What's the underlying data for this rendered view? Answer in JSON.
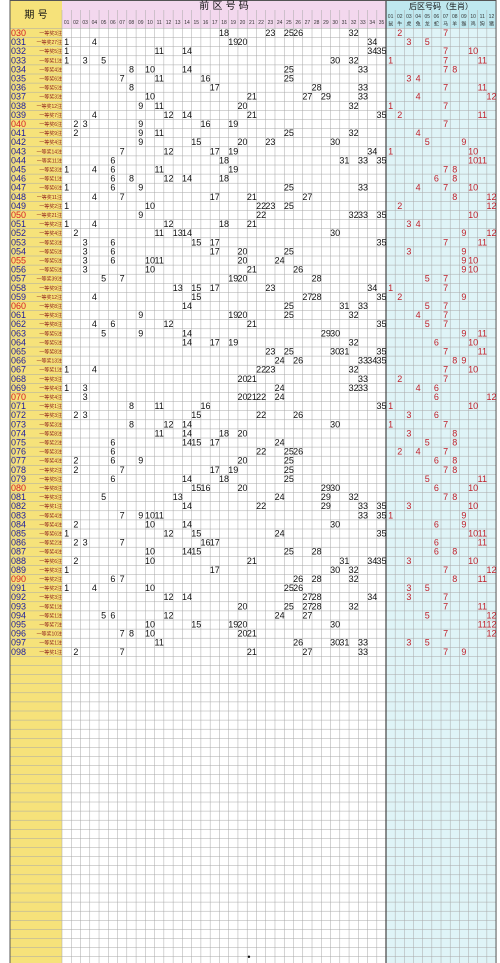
{
  "header": {
    "issue_col": "期 号",
    "front_title": "前 区 号 码",
    "back_title": "后区号码（生肖）",
    "front_cols": [
      "01",
      "02",
      "03",
      "04",
      "05",
      "06",
      "07",
      "08",
      "09",
      "10",
      "11",
      "12",
      "13",
      "14",
      "15",
      "16",
      "17",
      "18",
      "19",
      "20",
      "21",
      "22",
      "23",
      "24",
      "25",
      "26",
      "27",
      "28",
      "29",
      "30",
      "31",
      "32",
      "33",
      "34",
      "35"
    ],
    "back_cols": [
      "01",
      "02",
      "03",
      "04",
      "05",
      "06",
      "07",
      "08",
      "09",
      "10",
      "11",
      "12"
    ],
    "zodiac": [
      "鼠",
      "牛",
      "虎",
      "兔",
      "龙",
      "蛇",
      "马",
      "羊",
      "猴",
      "鸡",
      "狗",
      "猪"
    ]
  },
  "colors": {
    "issue_bg": "#f6e27a",
    "front_header_bg": "#f3d8ee",
    "back_header_bg": "#bfe8ef",
    "back_bg": "#dff4f7",
    "grid": "#9a9a9a",
    "red": "#d4202a",
    "dark": "#111111"
  },
  "rows": [
    {
      "issue": "030",
      "note": "一等奖3注",
      "front": [
        18,
        23,
        25,
        26,
        32
      ],
      "back": [
        2,
        7
      ],
      "red": true
    },
    {
      "issue": "031",
      "note": "一等奖27注",
      "front": [
        1,
        4,
        19,
        20,
        34
      ],
      "back": [
        3,
        5
      ]
    },
    {
      "issue": "032",
      "note": "一等奖5注",
      "front": [
        1,
        11,
        14,
        34,
        35
      ],
      "back": [
        7,
        10
      ]
    },
    {
      "issue": "033",
      "note": "一等奖1注",
      "front": [
        1,
        3,
        5,
        30,
        32
      ],
      "back": [
        1,
        7,
        11
      ]
    },
    {
      "issue": "034",
      "note": "一等奖4注",
      "front": [
        8,
        10,
        14,
        25,
        33
      ],
      "back": [
        7,
        8
      ]
    },
    {
      "issue": "035",
      "note": "一等奖6注",
      "front": [
        7,
        11,
        16,
        25
      ],
      "back": [
        3,
        4
      ]
    },
    {
      "issue": "036",
      "note": "一等奖5注",
      "front": [
        8,
        17,
        28,
        33
      ],
      "back": [
        7,
        11
      ]
    },
    {
      "issue": "037",
      "note": "一等奖3注",
      "front": [
        10,
        21,
        27,
        29,
        33
      ],
      "back": [
        4,
        12
      ]
    },
    {
      "issue": "038",
      "note": "一等奖12注",
      "front": [
        9,
        11,
        20,
        32
      ],
      "back": [
        1,
        7
      ]
    },
    {
      "issue": "039",
      "note": "一等奖7注",
      "front": [
        4,
        12,
        14,
        21,
        35
      ],
      "back": [
        2,
        11
      ]
    },
    {
      "issue": "040",
      "note": "一等奖6注",
      "front": [
        2,
        3,
        9,
        16,
        19
      ],
      "back": [
        7
      ],
      "red": true
    },
    {
      "issue": "041",
      "note": "一等奖9注",
      "front": [
        2,
        9,
        11,
        25,
        32
      ],
      "back": [
        4
      ]
    },
    {
      "issue": "042",
      "note": "一等奖4注",
      "front": [
        9,
        15,
        20,
        23,
        30
      ],
      "back": [
        5,
        9
      ]
    },
    {
      "issue": "043",
      "note": "一等奖14注",
      "front": [
        7,
        12,
        17,
        19,
        34
      ],
      "back": [
        1,
        10
      ]
    },
    {
      "issue": "044",
      "note": "一等奖11注",
      "front": [
        6,
        18,
        31,
        33,
        35
      ],
      "back": [
        10,
        11
      ]
    },
    {
      "issue": "045",
      "note": "一等奖3注",
      "front": [
        1,
        4,
        6,
        11,
        19
      ],
      "back": [
        7,
        8
      ]
    },
    {
      "issue": "046",
      "note": "一等奖1注",
      "front": [
        6,
        8,
        12,
        14,
        18
      ],
      "back": [
        6,
        8
      ]
    },
    {
      "issue": "047",
      "note": "一等奖6注",
      "front": [
        1,
        6,
        9,
        25,
        33
      ],
      "back": [
        4,
        7,
        10
      ]
    },
    {
      "issue": "048",
      "note": "一等奖11注",
      "front": [
        4,
        7,
        17,
        21,
        27
      ],
      "back": [
        8,
        12
      ]
    },
    {
      "issue": "049",
      "note": "一等奖2注",
      "front": [
        1,
        10,
        22,
        23,
        25
      ],
      "back": [
        2,
        12
      ]
    },
    {
      "issue": "050",
      "note": "一等奖21注",
      "front": [
        9,
        22,
        32,
        33,
        35
      ],
      "back": [
        10
      ],
      "red": true
    },
    {
      "issue": "051",
      "note": "一等奖2注",
      "front": [
        1,
        4,
        12,
        18,
        21
      ],
      "back": [
        3,
        4
      ]
    },
    {
      "issue": "052",
      "note": "一等奖4注",
      "front": [
        2,
        11,
        13,
        14,
        30
      ],
      "back": [
        9,
        12
      ]
    },
    {
      "issue": "053",
      "note": "一等奖3注",
      "front": [
        3,
        6,
        15,
        17,
        35
      ],
      "back": [
        7,
        11
      ]
    },
    {
      "issue": "054",
      "note": "一等奖5注",
      "front": [
        3,
        6,
        17,
        20,
        25
      ],
      "back": [
        3,
        9
      ]
    },
    {
      "issue": "055",
      "note": "一等奖5注",
      "front": [
        3,
        6,
        10,
        11,
        20,
        24
      ],
      "back": [
        9,
        10
      ],
      "red": true
    },
    {
      "issue": "056",
      "note": "一等奖5注",
      "front": [
        3,
        10,
        21,
        26
      ],
      "back": [
        9,
        10
      ]
    },
    {
      "issue": "057",
      "note": "一等奖39注",
      "front": [
        5,
        7,
        19,
        20,
        28
      ],
      "back": [
        5,
        7
      ]
    },
    {
      "issue": "058",
      "note": "一等奖9注",
      "front": [
        13,
        15,
        17,
        23,
        34
      ],
      "back": [
        1,
        7
      ]
    },
    {
      "issue": "059",
      "note": "一等奖12注",
      "front": [
        4,
        15,
        27,
        28,
        35
      ],
      "back": [
        2,
        9
      ]
    },
    {
      "issue": "060",
      "note": "一等奖8注",
      "front": [
        14,
        25,
        31,
        33
      ],
      "back": [
        5,
        7
      ],
      "red": true
    },
    {
      "issue": "061",
      "note": "一等奖3注",
      "front": [
        9,
        19,
        20,
        25,
        32
      ],
      "back": [
        4,
        7
      ]
    },
    {
      "issue": "062",
      "note": "一等奖8注",
      "front": [
        4,
        6,
        12,
        21,
        35
      ],
      "back": [
        5,
        7
      ]
    },
    {
      "issue": "063",
      "note": "一等奖5注",
      "front": [
        5,
        9,
        14,
        29,
        30
      ],
      "back": [
        9,
        11
      ]
    },
    {
      "issue": "064",
      "note": "一等奖5注",
      "front": [
        14,
        17,
        19,
        32
      ],
      "back": [
        6,
        10
      ]
    },
    {
      "issue": "065",
      "note": "一等奖8注",
      "front": [
        23,
        25,
        30,
        31,
        35
      ],
      "back": [
        7,
        11
      ]
    },
    {
      "issue": "066",
      "note": "一等奖13注",
      "front": [
        24,
        26,
        33,
        34,
        35
      ],
      "back": [
        8,
        9
      ]
    },
    {
      "issue": "067",
      "note": "一等奖1注",
      "front": [
        1,
        4,
        22,
        23,
        32
      ],
      "back": [
        7,
        10
      ]
    },
    {
      "issue": "068",
      "note": "一等奖3注",
      "front": [
        20,
        21,
        33
      ],
      "back": [
        2,
        7
      ]
    },
    {
      "issue": "069",
      "note": "一等奖4注",
      "front": [
        1,
        3,
        24,
        32,
        33
      ],
      "back": [
        4,
        6
      ]
    },
    {
      "issue": "070",
      "note": "一等奖4注",
      "front": [
        3,
        20,
        21,
        22,
        24
      ],
      "back": [
        6,
        12
      ],
      "red": true
    },
    {
      "issue": "071",
      "note": "一等奖1注",
      "front": [
        8,
        11,
        16,
        35
      ],
      "back": [
        1,
        10
      ]
    },
    {
      "issue": "072",
      "note": "一等奖3注",
      "front": [
        2,
        3,
        15,
        22,
        26
      ],
      "back": [
        3,
        6
      ]
    },
    {
      "issue": "073",
      "note": "一等奖3注",
      "front": [
        8,
        12,
        14,
        30
      ],
      "back": [
        1,
        7
      ]
    },
    {
      "issue": "074",
      "note": "一等奖8注",
      "front": [
        11,
        14,
        18,
        20
      ],
      "back": [
        3,
        8
      ]
    },
    {
      "issue": "075",
      "note": "一等奖2注",
      "front": [
        6,
        14,
        15,
        17,
        24
      ],
      "back": [
        5,
        8
      ]
    },
    {
      "issue": "076",
      "note": "一等奖3注",
      "front": [
        6,
        22,
        25,
        26
      ],
      "back": [
        2,
        4,
        7
      ]
    },
    {
      "issue": "077",
      "note": "一等奖4注",
      "front": [
        2,
        6,
        9,
        20,
        25
      ],
      "back": [
        6,
        8
      ]
    },
    {
      "issue": "078",
      "note": "一等奖2注",
      "front": [
        2,
        7,
        17,
        19,
        25
      ],
      "back": [
        7,
        8
      ]
    },
    {
      "issue": "079",
      "note": "一等奖5注",
      "front": [
        6,
        14,
        18,
        25
      ],
      "back": [
        5,
        11
      ]
    },
    {
      "issue": "080",
      "note": "一等奖8注",
      "front": [
        15,
        16,
        20,
        29,
        30
      ],
      "back": [
        6,
        10
      ],
      "red": true
    },
    {
      "issue": "081",
      "note": "一等奖3注",
      "front": [
        5,
        13,
        24,
        29,
        32
      ],
      "back": [
        7,
        8
      ]
    },
    {
      "issue": "082",
      "note": "一等奖1注",
      "front": [
        14,
        22,
        29,
        33,
        35
      ],
      "back": [
        3,
        10
      ]
    },
    {
      "issue": "083",
      "note": "一等奖4注",
      "front": [
        7,
        9,
        10,
        11,
        33,
        35
      ],
      "back": [
        1,
        9
      ]
    },
    {
      "issue": "084",
      "note": "一等奖4注",
      "front": [
        2,
        10,
        14,
        30
      ],
      "back": [
        6,
        9
      ]
    },
    {
      "issue": "085",
      "note": "一等奖6注",
      "front": [
        1,
        12,
        15,
        24,
        35
      ],
      "back": [
        10,
        11
      ]
    },
    {
      "issue": "086",
      "note": "一等奖2注",
      "front": [
        2,
        3,
        7,
        16,
        17
      ],
      "back": [
        6,
        11
      ]
    },
    {
      "issue": "087",
      "note": "一等奖4注",
      "front": [
        10,
        14,
        15,
        25,
        28
      ],
      "back": [
        6,
        8
      ]
    },
    {
      "issue": "088",
      "note": "一等奖6注",
      "front": [
        2,
        10,
        21,
        31,
        34,
        35
      ],
      "back": [
        3,
        10
      ]
    },
    {
      "issue": "089",
      "note": "一等奖3注",
      "front": [
        1,
        17,
        30,
        32
      ],
      "back": [
        7,
        12
      ]
    },
    {
      "issue": "090",
      "note": "一等奖2注",
      "front": [
        6,
        7,
        26,
        28,
        32
      ],
      "back": [
        8,
        11
      ],
      "red": true
    },
    {
      "issue": "091",
      "note": "一等奖2注",
      "front": [
        1,
        4,
        10,
        25,
        26
      ],
      "back": [
        3,
        5
      ]
    },
    {
      "issue": "092",
      "note": "一等奖3注",
      "front": [
        12,
        14,
        27,
        28,
        34
      ],
      "back": [
        3,
        7
      ]
    },
    {
      "issue": "093",
      "note": "一等奖1注",
      "front": [
        20,
        25,
        27,
        28,
        32
      ],
      "back": [
        7,
        11
      ]
    },
    {
      "issue": "094",
      "note": "一等奖1注",
      "front": [
        5,
        6,
        12,
        24,
        27
      ],
      "back": [
        5,
        12
      ]
    },
    {
      "issue": "095",
      "note": "一等奖7注",
      "front": [
        10,
        15,
        19,
        20,
        30
      ],
      "back": [
        11,
        12
      ]
    },
    {
      "issue": "096",
      "note": "一等奖10注",
      "front": [
        7,
        8,
        10,
        20,
        21
      ],
      "back": [
        7,
        12
      ]
    },
    {
      "issue": "097",
      "note": "一等奖1注",
      "front": [
        11,
        26,
        30,
        31,
        33
      ],
      "back": [
        3,
        5
      ]
    },
    {
      "issue": "098",
      "note": "一等奖1注",
      "front": [
        2,
        7,
        21,
        27,
        33
      ],
      "back": [
        7,
        9
      ]
    }
  ],
  "footer_dot": "•"
}
